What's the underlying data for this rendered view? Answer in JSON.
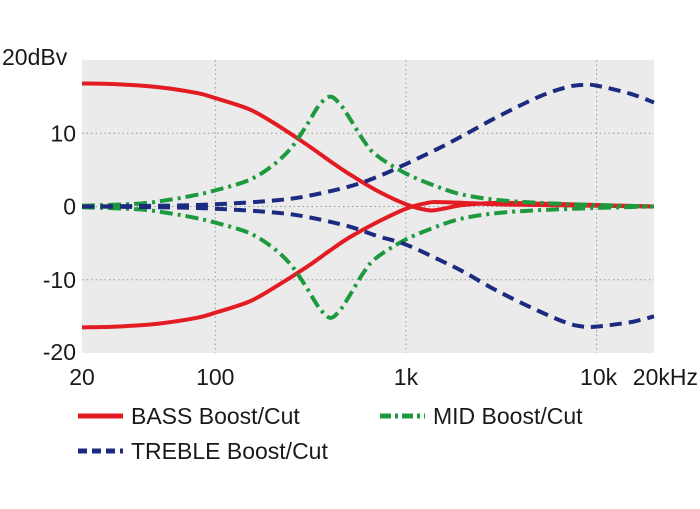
{
  "chart_data": {
    "type": "line",
    "title": "",
    "xlabel": "",
    "ylabel": "",
    "xscale": "log",
    "xlim": [
      20,
      20000
    ],
    "ylim": [
      -20,
      20
    ],
    "grid": true,
    "x_ticks": [
      {
        "value": 20,
        "label": "20"
      },
      {
        "value": 100,
        "label": "100"
      },
      {
        "value": 1000,
        "label": "1k"
      },
      {
        "value": 10000,
        "label": "10k"
      },
      {
        "value": 20000,
        "label": "20kHz"
      }
    ],
    "y_ticks": [
      {
        "value": 20,
        "label": "20dBv"
      },
      {
        "value": 10,
        "label": "10"
      },
      {
        "value": 0,
        "label": "0"
      },
      {
        "value": -10,
        "label": "-10"
      },
      {
        "value": -20,
        "label": "-20"
      }
    ],
    "legend_position": "bottom",
    "series": [
      {
        "name": "BASS Boost",
        "legend": "BASS Boost/Cut",
        "color": "#e31b23",
        "dash": "solid",
        "x": [
          20,
          30,
          50,
          80,
          100,
          150,
          200,
          300,
          400,
          500,
          700,
          1000,
          1300,
          1500,
          2000,
          3000,
          5000,
          10000,
          20000
        ],
        "y": [
          16.8,
          16.7,
          16.3,
          15.5,
          14.8,
          13.3,
          11.5,
          8.5,
          6.2,
          4.5,
          2.2,
          0.3,
          -0.5,
          -0.4,
          0.2,
          0.5,
          0.4,
          0.2,
          0
        ]
      },
      {
        "name": "BASS Cut",
        "legend": "",
        "color": "#e31b23",
        "dash": "solid",
        "x": [
          20,
          30,
          50,
          80,
          100,
          150,
          200,
          300,
          400,
          500,
          700,
          1000,
          1300,
          1500,
          2000,
          3000,
          5000,
          10000,
          20000
        ],
        "y": [
          -16.5,
          -16.4,
          -16.0,
          -15.2,
          -14.5,
          -13.0,
          -11.2,
          -8.3,
          -6.0,
          -4.3,
          -2.2,
          -0.3,
          0.5,
          0.6,
          0.5,
          0.3,
          0.2,
          0.1,
          0
        ]
      },
      {
        "name": "MID Boost",
        "legend": "MID Boost/Cut",
        "color": "#1e9a3e",
        "dash": "dashdot",
        "x": [
          20,
          40,
          60,
          80,
          100,
          150,
          200,
          250,
          300,
          350,
          400,
          450,
          500,
          600,
          700,
          1000,
          1500,
          2000,
          3000,
          5000,
          10000,
          20000
        ],
        "y": [
          0.1,
          0.4,
          1.0,
          1.6,
          2.2,
          3.6,
          5.6,
          8.0,
          11.0,
          13.8,
          15.0,
          14.0,
          12.3,
          9.0,
          7.0,
          4.5,
          2.6,
          1.6,
          0.9,
          0.5,
          0.2,
          0
        ]
      },
      {
        "name": "MID Cut",
        "legend": "",
        "color": "#1e9a3e",
        "dash": "dashdot",
        "x": [
          20,
          40,
          60,
          80,
          100,
          150,
          200,
          250,
          300,
          350,
          400,
          450,
          500,
          600,
          700,
          1000,
          1500,
          2000,
          3000,
          5000,
          10000,
          20000
        ],
        "y": [
          -0.1,
          -0.4,
          -1.0,
          -1.6,
          -2.2,
          -3.6,
          -5.6,
          -8.0,
          -11.0,
          -13.8,
          -15.2,
          -14.2,
          -12.4,
          -9.0,
          -7.0,
          -4.5,
          -2.6,
          -1.6,
          -0.9,
          -0.5,
          -0.2,
          0
        ]
      },
      {
        "name": "TREBLE Boost",
        "legend": "TREBLE Boost/Cut",
        "color": "#1c2a80",
        "dash": "dashed",
        "x": [
          20,
          50,
          100,
          200,
          300,
          500,
          700,
          1000,
          1500,
          2000,
          3000,
          5000,
          7000,
          8500,
          10000,
          15000,
          20000
        ],
        "y": [
          0,
          0.1,
          0.3,
          0.8,
          1.4,
          2.7,
          4.0,
          5.8,
          8.0,
          9.7,
          12.2,
          15.0,
          16.3,
          16.6,
          16.5,
          15.4,
          14.2
        ]
      },
      {
        "name": "TREBLE Cut",
        "legend": "",
        "color": "#1c2a80",
        "dash": "dashed",
        "x": [
          20,
          50,
          100,
          200,
          300,
          500,
          700,
          1000,
          1500,
          2000,
          3000,
          5000,
          7000,
          8500,
          10000,
          15000,
          20000
        ],
        "y": [
          0,
          -0.1,
          -0.3,
          -0.8,
          -1.4,
          -2.7,
          -4.0,
          -5.2,
          -7.3,
          -8.9,
          -11.5,
          -14.3,
          -15.9,
          -16.4,
          -16.4,
          -15.8,
          -15.0
        ]
      }
    ]
  }
}
